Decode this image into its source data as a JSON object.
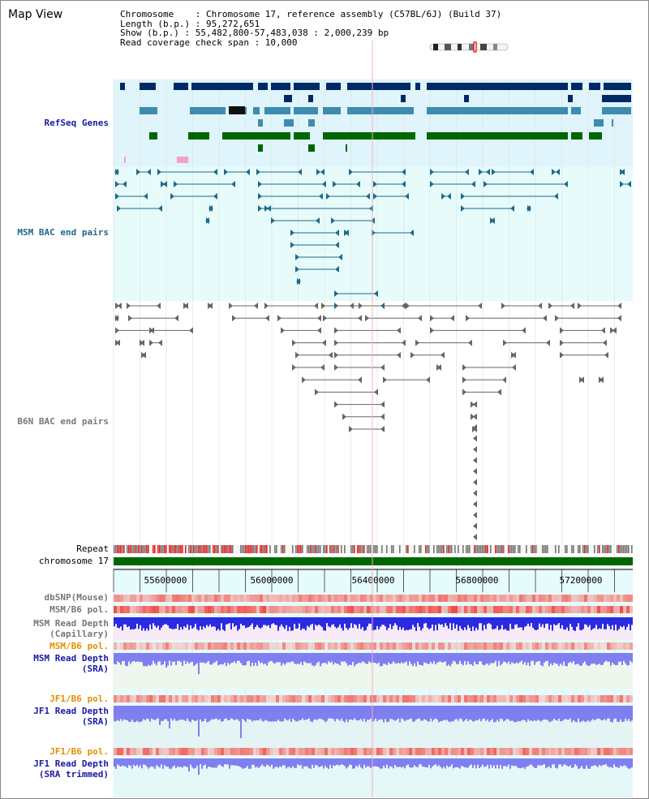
{
  "header": {
    "map_title": "Map View",
    "chromosome_line": "Chromosome    : Chromosome 17, reference assembly (C57BL/6J) (Build 37)",
    "length_line": "Length (b.p.) : 95,272,651",
    "show_line": "Show (b.p.) : 55,482,800-57,483,038 : 2,000,239 bp",
    "coverage_line": "Read coverage check span : 10,000"
  },
  "tracks": {
    "refseq": "RefSeq Genes",
    "msm_bac": "MSM BAC end pairs",
    "b6n_bac": "B6N BAC end pairs",
    "repeat": "Repeat",
    "chromosome": "chromosome 17",
    "dbsnp": "dbSNP(Mouse)",
    "msm_b6_pol_1": "MSM/B6 pol.",
    "msm_read_depth_cap_1": "MSM Read Depth",
    "msm_read_depth_cap_2": "(Capillary)",
    "msm_b6_pol_2": "MSM/B6 pol.",
    "msm_read_depth_sra_1": "MSM Read Depth",
    "msm_read_depth_sra_2": "(SRA)",
    "jf1_b6_pol_1": "JF1/B6 pol.",
    "jf1_read_depth_sra_1": "JF1 Read Depth",
    "jf1_read_depth_sra_2": "(SRA)",
    "jf1_b6_pol_2": "JF1/B6 pol.",
    "jf1_read_depth_trim_1": "JF1 Read Depth",
    "jf1_read_depth_trim_2": "(SRA trimmed)"
  },
  "axis": {
    "ticks": [
      "55600000",
      "56000000",
      "56400000",
      "56800000",
      "57200000"
    ]
  },
  "colors": {
    "refseq_bg": "#e0f4fb",
    "bac_bg": "#e8fbfb",
    "dark_blue": "#002a66",
    "mid_blue": "#3d8cb0",
    "green": "#006600",
    "msm_pair": "#1d6a8c",
    "b6n_pair": "#666666",
    "label_blue": "#1a1aa6",
    "label_teal": "#1d6a8c",
    "label_orange": "#e09000",
    "depth_blue": "#2a2ae0",
    "depth_light": "#7f7ff0"
  }
}
